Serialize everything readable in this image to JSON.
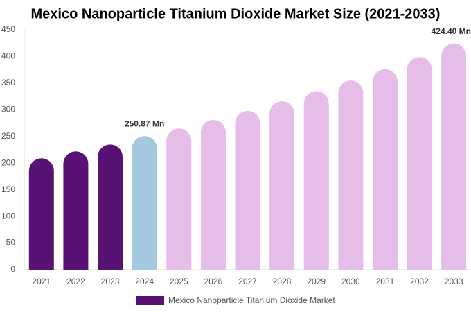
{
  "chart_data": {
    "type": "bar",
    "title": "Mexico Nanoparticle Titanium Dioxide Market Size (2021-2033)",
    "categories": [
      "2021",
      "2022",
      "2023",
      "2024",
      "2025",
      "2026",
      "2027",
      "2028",
      "2029",
      "2030",
      "2031",
      "2032",
      "2033"
    ],
    "series": [
      {
        "name": "Mexico Nanoparticle Titanium Dioxide Market",
        "color": "#581273",
        "values": [
          209,
          222,
          235,
          250.87,
          265,
          281,
          298,
          316,
          335,
          355,
          376,
          399,
          424.4
        ],
        "value_labels": [
          null,
          null,
          null,
          "250.87 Mn",
          null,
          null,
          null,
          null,
          null,
          null,
          null,
          null,
          "424.40 Mn"
        ],
        "colors": [
          "#581273",
          "#581273",
          "#581273",
          "#a4c9de",
          "#e6bde8",
          "#e6bde8",
          "#e6bde8",
          "#e6bde8",
          "#e6bde8",
          "#e6bde8",
          "#e6bde8",
          "#e6bde8",
          "#e6bde8"
        ]
      }
    ],
    "ylim": [
      0,
      450
    ],
    "yticks": [
      0,
      50,
      100,
      150,
      200,
      250,
      300,
      350,
      400,
      450
    ],
    "grid": false
  }
}
